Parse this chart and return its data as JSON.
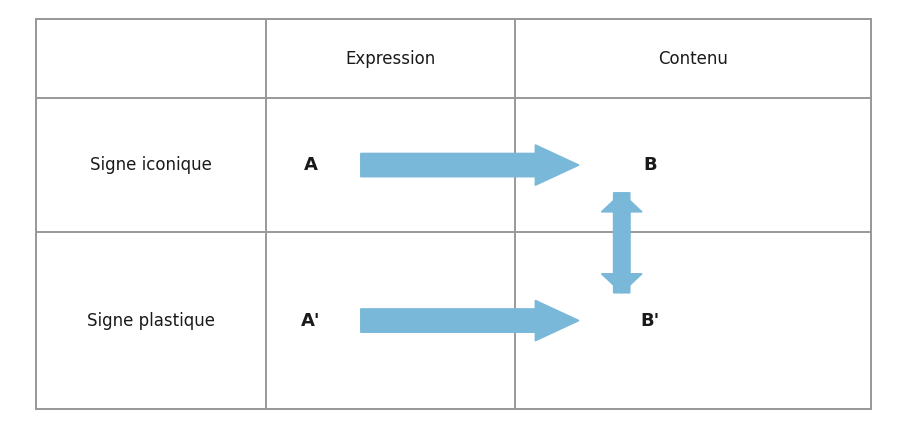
{
  "bg_color": "#ffffff",
  "arrow_color": "#7ab8d9",
  "text_color": "#1a1a1a",
  "grid_line_color": "#999999",
  "figsize": [
    9.03,
    4.26
  ],
  "dpi": 100,
  "col0": 0.04,
  "col1": 0.295,
  "col2": 0.57,
  "col3": 0.965,
  "row0": 0.955,
  "row1": 0.77,
  "row2": 0.455,
  "row3": 0.04,
  "header_expr": "Expression",
  "header_cont": "Contenu",
  "label_row1": "Signe iconique",
  "label_row2": "Signe plastique",
  "A_row1": "A",
  "B_row1": "B",
  "A_row2": "A'",
  "B_row2": "B'",
  "label_fontsize": 12,
  "header_fontsize": 12,
  "bold_fontsize": 13,
  "line_width": 1.4
}
